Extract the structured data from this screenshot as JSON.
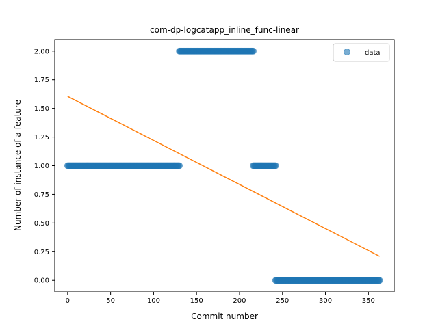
{
  "chart_data": {
    "type": "scatter",
    "title": "com-dp-logcatapp_inline_func-linear",
    "xlabel": "Commit number",
    "ylabel": "Number of instance of a feature",
    "xlim": [
      -15,
      380
    ],
    "ylim": [
      -0.1,
      2.1
    ],
    "xticks": [
      0,
      50,
      100,
      150,
      200,
      250,
      300,
      350
    ],
    "yticks": [
      0.0,
      0.25,
      0.5,
      0.75,
      1.0,
      1.25,
      1.5,
      1.75,
      2.0
    ],
    "xtick_labels": [
      "0",
      "50",
      "100",
      "150",
      "200",
      "250",
      "300",
      "350"
    ],
    "ytick_labels": [
      "0.00",
      "0.25",
      "0.50",
      "0.75",
      "1.00",
      "1.25",
      "1.50",
      "1.75",
      "2.00"
    ],
    "legend": {
      "position": "top-right",
      "entries": [
        "data"
      ]
    },
    "grid": false,
    "series": [
      {
        "name": "data",
        "kind": "scatter",
        "color": "#1f77b4",
        "segments": [
          {
            "x_start": 0,
            "x_end": 130,
            "y": 1
          },
          {
            "x_start": 130,
            "x_end": 216,
            "y": 2
          },
          {
            "x_start": 216,
            "x_end": 242,
            "y": 1
          },
          {
            "x_start": 242,
            "x_end": 363,
            "y": 0
          }
        ]
      },
      {
        "kind": "line",
        "color": "#ff7f0e",
        "x": [
          0,
          363
        ],
        "y": [
          1.605,
          0.21
        ]
      }
    ]
  }
}
